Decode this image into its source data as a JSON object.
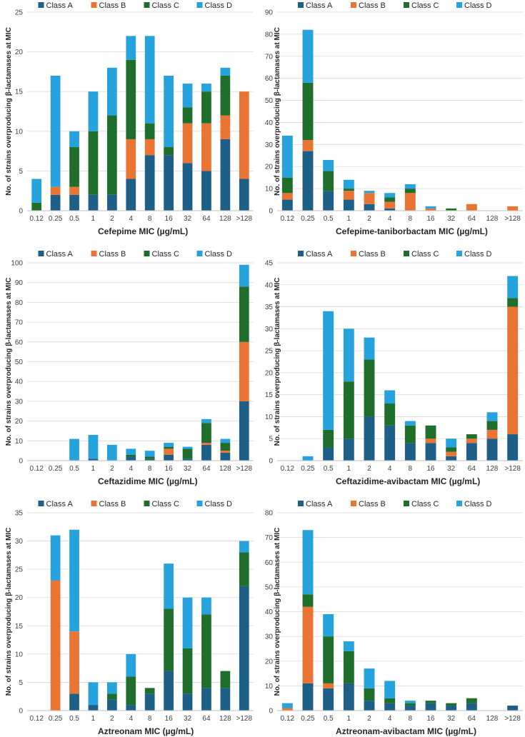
{
  "colors": {
    "Class A": "#1d5f86",
    "Class B": "#ea7434",
    "Class C": "#1f6e2b",
    "Class D": "#26a3dd"
  },
  "chart_data": [
    {
      "type": "bar",
      "stacked": true,
      "xlabel": "Cefepime MIC (µg/mL)",
      "ylabel": "No. of strains overproducing β-lactamases at MIC",
      "categories": [
        "0.12",
        "0.25",
        "0.5",
        "1",
        "2",
        "4",
        "8",
        "16",
        "32",
        "64",
        "128",
        ">128"
      ],
      "ylim": [
        0,
        25
      ],
      "yticks": [
        0,
        5,
        10,
        15,
        20,
        25
      ],
      "legend_position": "top",
      "series": [
        {
          "name": "Class A",
          "values": [
            0,
            2,
            2,
            2,
            2,
            4,
            7,
            7,
            6,
            5,
            9,
            4
          ]
        },
        {
          "name": "Class B",
          "values": [
            0,
            1,
            1,
            0,
            0,
            5,
            2,
            0,
            5,
            6,
            3,
            11
          ]
        },
        {
          "name": "Class C",
          "values": [
            1,
            0,
            5,
            8,
            10,
            10,
            2,
            1,
            2,
            4,
            5,
            0
          ]
        },
        {
          "name": "Class D",
          "values": [
            3,
            14,
            2,
            5,
            6,
            3,
            11,
            9,
            3,
            1,
            1,
            0
          ]
        }
      ]
    },
    {
      "type": "bar",
      "stacked": true,
      "xlabel": "Cefepime-taniborbactam MIC (µg/mL)",
      "ylabel": "No. of strains overproducing β-lactamases at MIC",
      "categories": [
        "0.12",
        "0.25",
        "0.5",
        "1",
        "2",
        "4",
        "8",
        "16",
        "32",
        "64",
        "128",
        ">128"
      ],
      "ylim": [
        0,
        90
      ],
      "yticks": [
        0,
        10,
        20,
        30,
        40,
        50,
        60,
        70,
        80,
        90
      ],
      "legend_position": "top",
      "series": [
        {
          "name": "Class A",
          "values": [
            5,
            27,
            9,
            5,
            3,
            1,
            0,
            0,
            0,
            0,
            0,
            0
          ]
        },
        {
          "name": "Class B",
          "values": [
            3,
            5,
            0,
            4,
            5,
            3,
            8,
            1,
            0,
            3,
            0,
            2
          ]
        },
        {
          "name": "Class C",
          "values": [
            7,
            26,
            9,
            1,
            0,
            2,
            2,
            0,
            1,
            0,
            0,
            0
          ]
        },
        {
          "name": "Class D",
          "values": [
            19,
            24,
            5,
            4,
            1,
            2,
            2,
            1,
            0,
            0,
            0,
            0
          ]
        }
      ]
    },
    {
      "type": "bar",
      "stacked": true,
      "xlabel": "Ceftazidime MIC (µg/mL)",
      "ylabel": "No. of strains overproducing β-lactamases at MIC",
      "categories": [
        "0.12",
        "0.25",
        "0.5",
        "1",
        "2",
        "4",
        "8",
        "16",
        "32",
        "64",
        "128",
        ">128"
      ],
      "ylim": [
        0,
        100
      ],
      "yticks": [
        0,
        10,
        20,
        30,
        40,
        50,
        60,
        70,
        80,
        90,
        100
      ],
      "legend_position": "top",
      "series": [
        {
          "name": "Class A",
          "values": [
            0,
            0,
            0,
            1,
            0,
            2,
            1,
            3,
            1,
            8,
            4,
            30
          ]
        },
        {
          "name": "Class B",
          "values": [
            0,
            0,
            0,
            0,
            0,
            0,
            0,
            3,
            0,
            1,
            1,
            30
          ]
        },
        {
          "name": "Class C",
          "values": [
            0,
            0,
            0,
            0,
            0,
            1,
            1,
            1,
            5,
            10,
            4,
            28
          ]
        },
        {
          "name": "Class D",
          "values": [
            0,
            0,
            11,
            12,
            8,
            3,
            3,
            2,
            1,
            2,
            2,
            11
          ]
        }
      ]
    },
    {
      "type": "bar",
      "stacked": true,
      "xlabel": "Ceftazidime-avibactam MIC (µg/mL)",
      "ylabel": "No. of strains overproducing β-lactamases at MIC",
      "categories": [
        "0.12",
        "0.25",
        "0.5",
        "1",
        "2",
        "4",
        "8",
        "16",
        "32",
        "64",
        "128",
        ">128"
      ],
      "ylim": [
        0,
        45
      ],
      "yticks": [
        0,
        5,
        10,
        15,
        20,
        25,
        30,
        35,
        40,
        45
      ],
      "legend_position": "top",
      "series": [
        {
          "name": "Class A",
          "values": [
            0,
            0,
            3,
            5,
            10,
            8,
            4,
            4,
            1,
            4,
            5,
            6
          ]
        },
        {
          "name": "Class B",
          "values": [
            0,
            0,
            0,
            0,
            0,
            0,
            0,
            1,
            1,
            1,
            2,
            29
          ]
        },
        {
          "name": "Class C",
          "values": [
            0,
            0,
            4,
            13,
            13,
            5,
            4,
            3,
            1,
            1,
            2,
            2
          ]
        },
        {
          "name": "Class D",
          "values": [
            0,
            1,
            27,
            12,
            5,
            3,
            1,
            0,
            2,
            0,
            2,
            5
          ]
        }
      ]
    },
    {
      "type": "bar",
      "stacked": true,
      "xlabel": "Aztreonam MIC (µg/mL)",
      "ylabel": "No. of strains overproducing β-lactamases at MIC",
      "categories": [
        "0.12",
        "0.25",
        "0.5",
        "1",
        "2",
        "4",
        "8",
        "16",
        "32",
        "64",
        "128",
        ">128"
      ],
      "ylim": [
        0,
        35
      ],
      "yticks": [
        0,
        5,
        10,
        15,
        20,
        25,
        30,
        35
      ],
      "legend_position": "top",
      "series": [
        {
          "name": "Class A",
          "values": [
            0,
            0,
            3,
            1,
            2,
            1,
            3,
            7,
            3,
            4,
            4,
            22
          ]
        },
        {
          "name": "Class B",
          "values": [
            0,
            23,
            11,
            0,
            0,
            0,
            0,
            0,
            0,
            0,
            0,
            0
          ]
        },
        {
          "name": "Class C",
          "values": [
            0,
            0,
            0,
            0,
            1,
            5,
            1,
            11,
            8,
            13,
            3,
            6
          ]
        },
        {
          "name": "Class D",
          "values": [
            0,
            8,
            18,
            4,
            2,
            4,
            0,
            8,
            9,
            3,
            0,
            2
          ]
        }
      ]
    },
    {
      "type": "bar",
      "stacked": true,
      "xlabel": "Aztreonam-avibactam MIC (µg/mL)",
      "ylabel": "No. of strains overproducing β-lactamases at MIC",
      "categories": [
        "0.12",
        "0.25",
        "0.5",
        "1",
        "2",
        "4",
        "8",
        "16",
        "32",
        "64",
        "128",
        ">128"
      ],
      "ylim": [
        0,
        80
      ],
      "yticks": [
        0,
        10,
        20,
        30,
        40,
        50,
        60,
        70,
        80
      ],
      "legend_position": "top",
      "series": [
        {
          "name": "Class A",
          "values": [
            0,
            11,
            9,
            11,
            4,
            3,
            2,
            3,
            2,
            3,
            0,
            2
          ]
        },
        {
          "name": "Class B",
          "values": [
            1,
            31,
            2,
            0,
            0,
            0,
            0,
            0,
            0,
            0,
            0,
            0
          ]
        },
        {
          "name": "Class C",
          "values": [
            0,
            5,
            19,
            13,
            5,
            2,
            1,
            1,
            1,
            2,
            0,
            0
          ]
        },
        {
          "name": "Class D",
          "values": [
            2,
            26,
            9,
            4,
            8,
            7,
            1,
            0,
            0,
            0,
            0,
            0
          ]
        }
      ]
    }
  ]
}
